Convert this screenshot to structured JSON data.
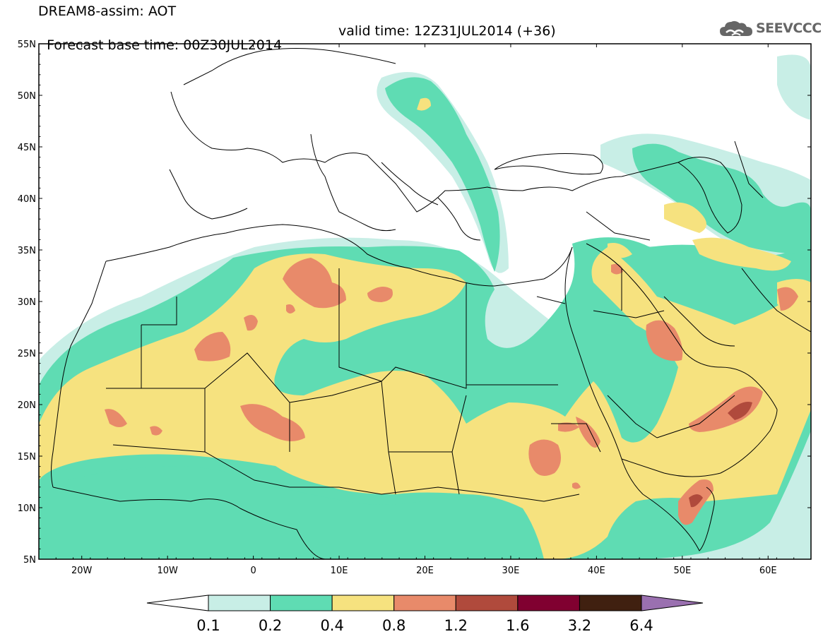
{
  "header": {
    "title": "DREAM8-assim: AOT",
    "base_time": "Forecast base time: 00Z30JUL2014",
    "valid_time": "valid time: 12Z31JUL2014 (+36)",
    "brand": "SEEVCCC"
  },
  "map": {
    "lon_labels": [
      "20W",
      "10W",
      "0",
      "10E",
      "20E",
      "30E",
      "40E",
      "50E",
      "60E"
    ],
    "lat_labels": [
      "55N",
      "50N",
      "45N",
      "40N",
      "35N",
      "30N",
      "25N",
      "20N",
      "15N",
      "10N",
      "5N"
    ],
    "lon_range": [
      -25,
      65
    ],
    "lat_range": [
      5,
      55
    ],
    "variable": "AOT"
  },
  "colorbar": {
    "labels": [
      "0.1",
      "0.2",
      "0.4",
      "0.8",
      "1.2",
      "1.6",
      "3.2",
      "6.4"
    ],
    "colors": [
      "#ffffff",
      "#c8eee6",
      "#5fdcb3",
      "#f6e27f",
      "#e88a6a",
      "#b04a3c",
      "#800030",
      "#402010",
      "#9a70b0"
    ]
  },
  "colors": {
    "c1": "#c8eee6",
    "c2": "#5fdcb3",
    "c3": "#f6e27f",
    "c4": "#e88a6a",
    "c5": "#b04a3c",
    "coast": "#000000",
    "brand_gray": "#666666"
  }
}
